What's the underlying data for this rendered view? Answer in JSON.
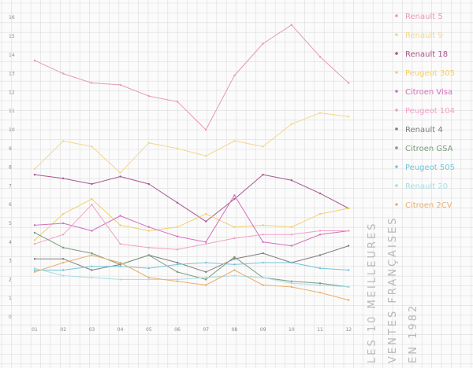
{
  "chart_data": {
    "type": "line",
    "title_lines": [
      "LES 10 MEILLEURES",
      "VENTES FRANÇAISES",
      "EN 1982"
    ],
    "xlabel": "",
    "ylabel": "",
    "x": [
      "01",
      "02",
      "03",
      "04",
      "05",
      "06",
      "07",
      "08",
      "09",
      "10",
      "11",
      "12"
    ],
    "yticks": [
      "0",
      "1",
      "2",
      "3",
      "4",
      "5",
      "6",
      "7",
      "8",
      "9",
      "10",
      "11",
      "12",
      "13",
      "14",
      "15",
      "16"
    ],
    "ylim": [
      0,
      16
    ],
    "grid": true,
    "legend_position": "right",
    "series": [
      {
        "name": "Renault 5",
        "color": "#e79ab5",
        "values": [
          13.7,
          13.0,
          12.5,
          12.4,
          11.8,
          11.5,
          10.0,
          12.9,
          14.6,
          15.6,
          13.9,
          12.5
        ]
      },
      {
        "name": "Renault 9",
        "color": "#f2d78c",
        "values": [
          7.9,
          9.4,
          9.1,
          7.7,
          9.3,
          9.0,
          8.6,
          9.4,
          9.1,
          10.3,
          10.9,
          10.7
        ]
      },
      {
        "name": "Renault 18",
        "color": "#a9578d",
        "values": [
          7.6,
          7.4,
          7.1,
          7.5,
          7.1,
          6.1,
          5.1,
          6.3,
          7.6,
          7.3,
          6.6,
          5.8
        ]
      },
      {
        "name": "Peugeot 305",
        "color": "#f2d06e",
        "values": [
          4.1,
          5.5,
          6.3,
          4.9,
          4.6,
          4.8,
          5.5,
          4.8,
          4.9,
          4.8,
          5.5,
          5.8
        ]
      },
      {
        "name": "Citroen Visa",
        "color": "#d36fbe",
        "values": [
          4.9,
          5.0,
          4.6,
          5.4,
          4.8,
          4.3,
          4.0,
          6.5,
          4.0,
          3.8,
          4.4,
          4.6
        ]
      },
      {
        "name": "Peugeot 104",
        "color": "#f2a1c7",
        "values": [
          3.9,
          4.4,
          6.0,
          3.9,
          3.7,
          3.6,
          3.9,
          4.2,
          4.4,
          4.4,
          4.6,
          4.6
        ]
      },
      {
        "name": "Renault 4",
        "color": "#7f7f7f",
        "values": [
          3.1,
          3.1,
          2.5,
          2.8,
          3.3,
          2.9,
          2.4,
          3.1,
          3.4,
          2.9,
          3.3,
          3.8
        ]
      },
      {
        "name": "Citroen GSA",
        "color": "#7d9a7d",
        "values": [
          4.5,
          3.7,
          3.4,
          2.8,
          3.3,
          2.4,
          2.0,
          3.2,
          2.1,
          1.9,
          1.8,
          1.6
        ]
      },
      {
        "name": "Peugeot 505",
        "color": "#73c6d9",
        "values": [
          2.5,
          2.5,
          2.7,
          2.7,
          2.6,
          2.8,
          2.9,
          2.8,
          2.9,
          2.9,
          2.6,
          2.5
        ]
      },
      {
        "name": "Renault 20",
        "color": "#a9dce5",
        "values": [
          2.6,
          2.2,
          2.1,
          2.0,
          2.0,
          2.0,
          2.1,
          2.2,
          2.1,
          1.8,
          1.7,
          1.6
        ]
      },
      {
        "name": "Citroen 2CV",
        "color": "#eab06a",
        "values": [
          2.4,
          2.9,
          3.3,
          2.9,
          2.1,
          1.9,
          1.7,
          2.5,
          1.7,
          1.6,
          1.3,
          0.9
        ]
      }
    ]
  }
}
